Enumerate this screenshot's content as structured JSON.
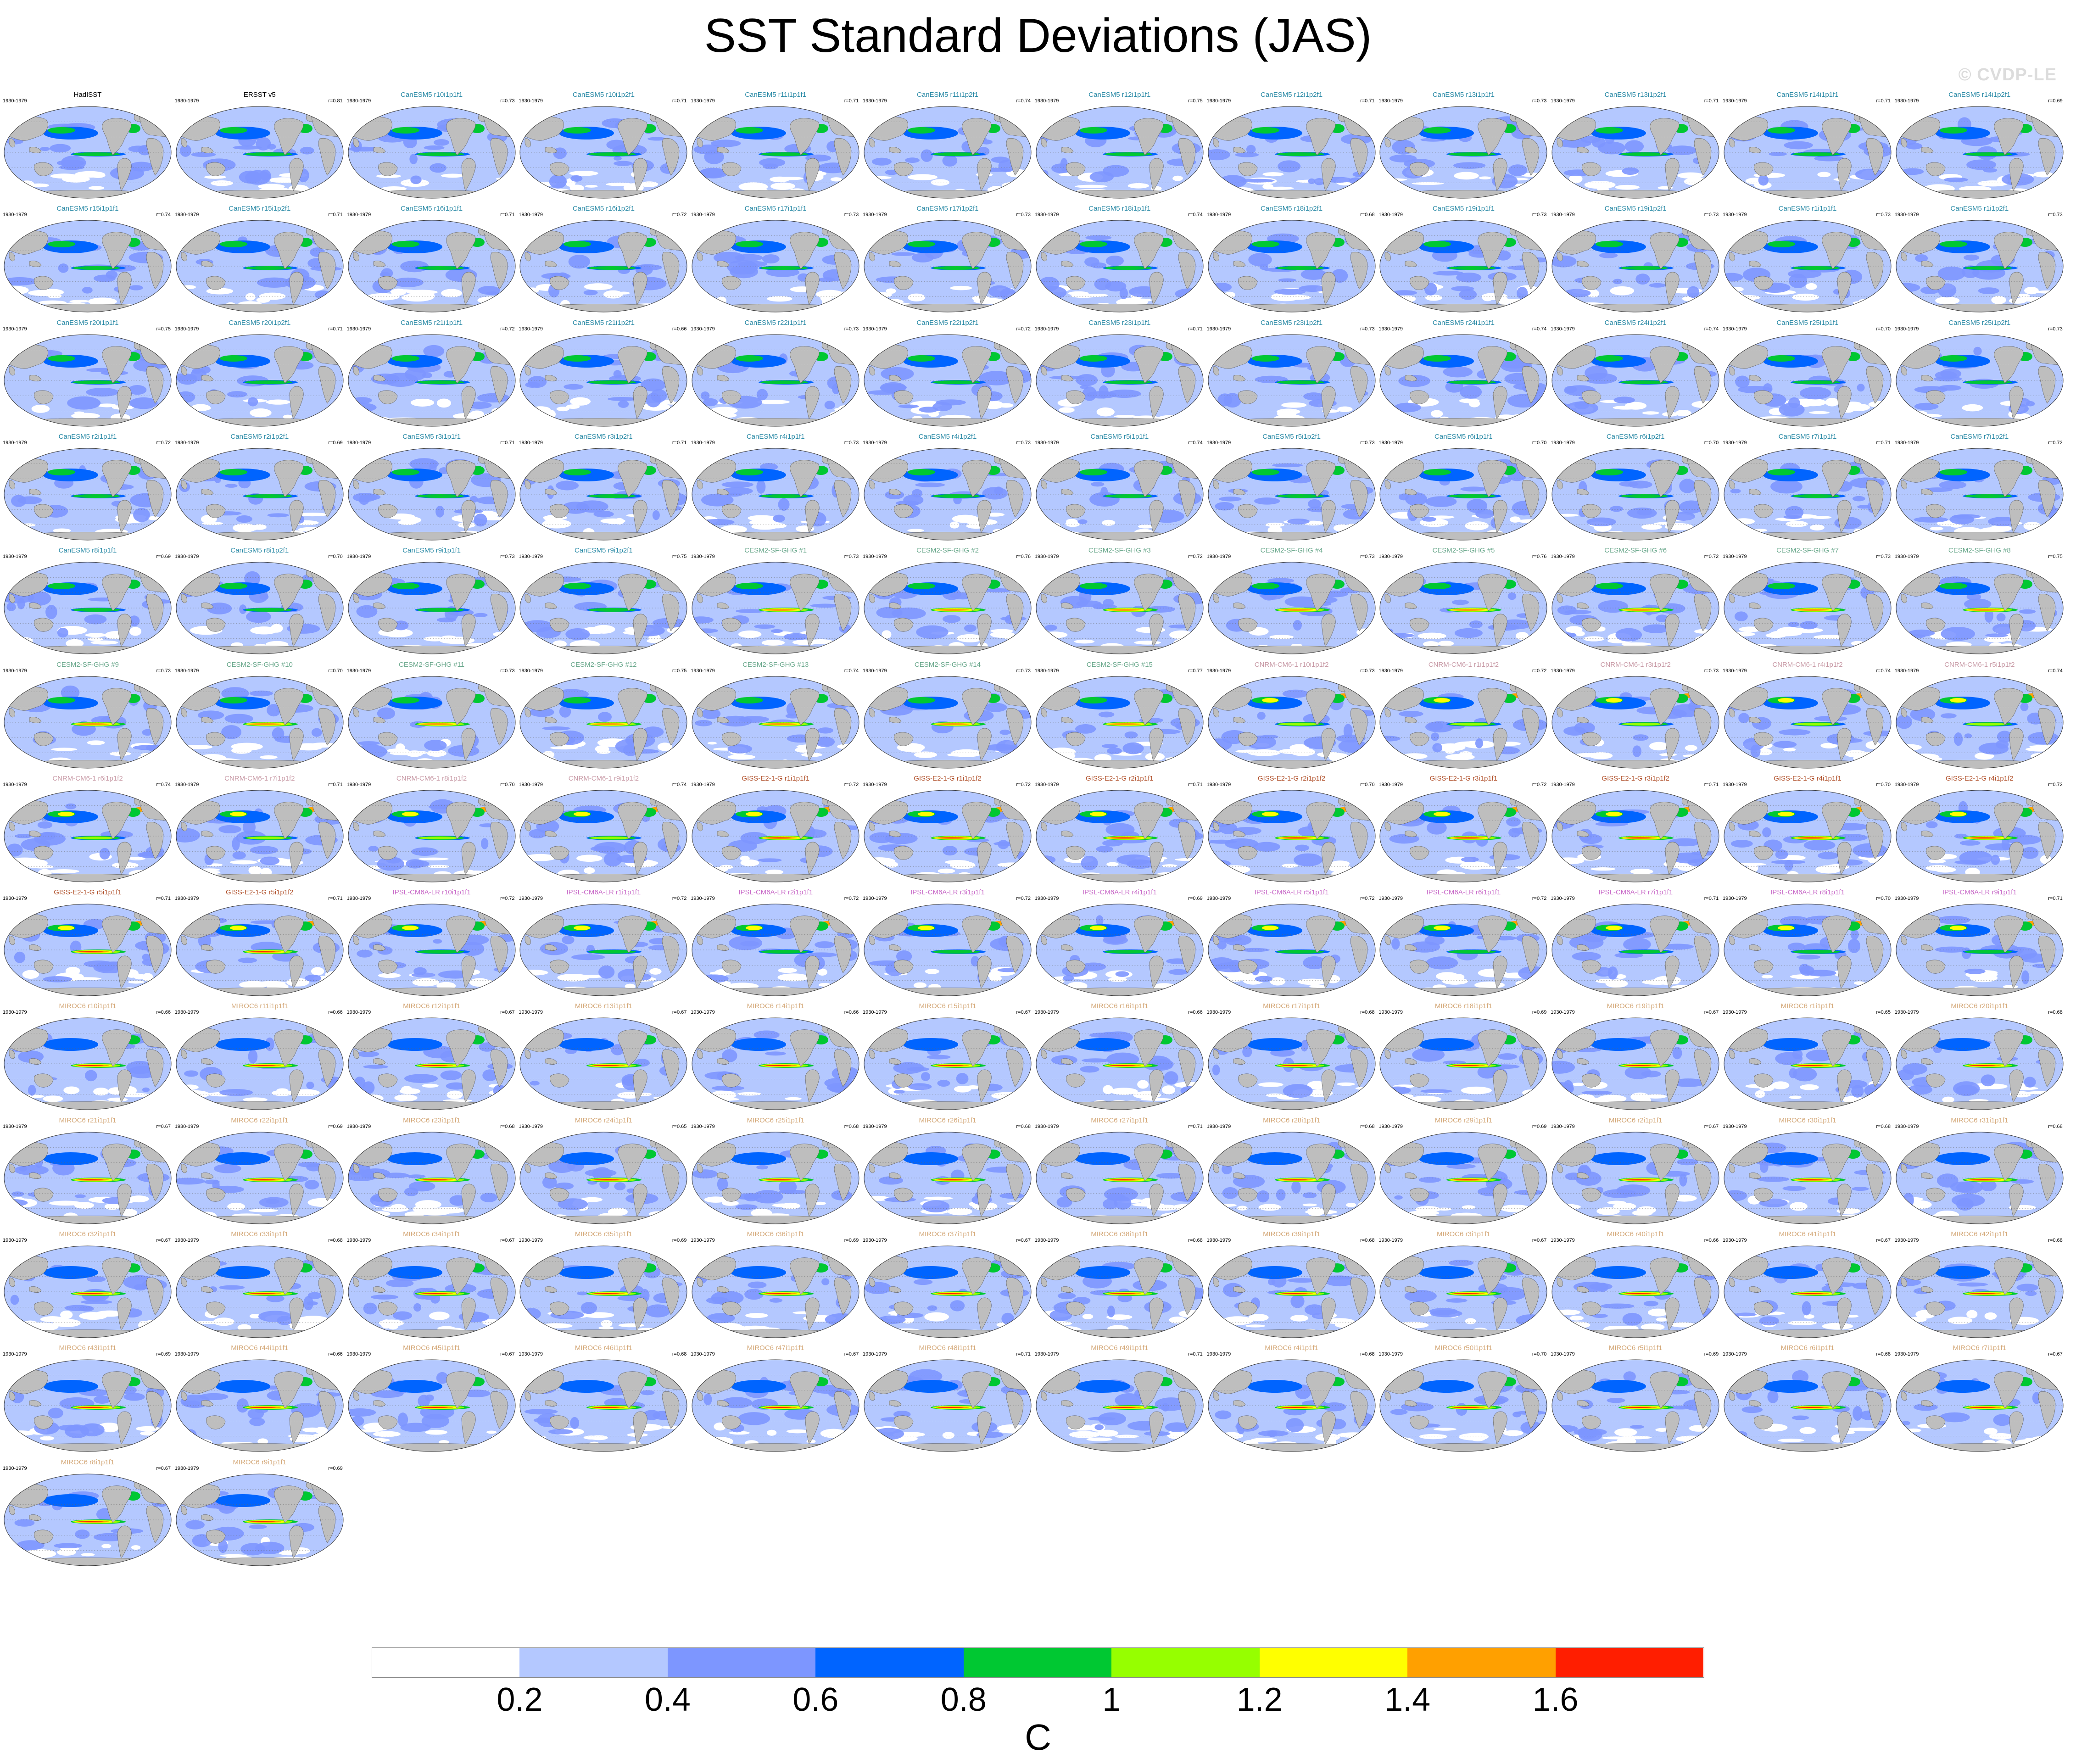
{
  "title": "SST Standard Deviations (JAS)",
  "watermark": "© CVDP-LE",
  "colorbar": {
    "colors": [
      "#ffffff",
      "#b4c8ff",
      "#7d96ff",
      "#0064ff",
      "#00c832",
      "#96ff00",
      "#ffff00",
      "#ffa000",
      "#ff1e00"
    ],
    "ticks": [
      "0.2",
      "0.4",
      "0.6",
      "0.8",
      "1",
      "1.2",
      "1.4",
      "1.6"
    ],
    "units": "C"
  },
  "colors": {
    "land": "#bebebe",
    "ocean_low": "#b4c8ff",
    "obs_label": "#000000",
    "CanESM5": "#2a8aa6",
    "CESM2-SF-GHG": "#6aa88c",
    "CNRM-CM6-1": "#c89aa6",
    "GISS-E2-1-G": "#b0502a",
    "IPSL-CM6A-LR": "#c86ac8",
    "MIROC6": "#d4a878"
  },
  "panels": [
    {
      "label": "HadISST",
      "period": "1930-1979",
      "r": "",
      "group": "obs"
    },
    {
      "label": "ERSST v5",
      "period": "1930-1979",
      "r": "r=0.81",
      "group": "obs"
    },
    {
      "label": "CanESM5 r10i1p1f1",
      "period": "1930-1979",
      "r": "r=0.73",
      "group": "CanESM5"
    },
    {
      "label": "CanESM5 r10i1p2f1",
      "period": "1930-1979",
      "r": "r=0.71",
      "group": "CanESM5"
    },
    {
      "label": "CanESM5 r11i1p1f1",
      "period": "1930-1979",
      "r": "r=0.71",
      "group": "CanESM5"
    },
    {
      "label": "CanESM5 r11i1p2f1",
      "period": "1930-1979",
      "r": "r=0.74",
      "group": "CanESM5"
    },
    {
      "label": "CanESM5 r12i1p1f1",
      "period": "1930-1979",
      "r": "r=0.75",
      "group": "CanESM5"
    },
    {
      "label": "CanESM5 r12i1p2f1",
      "period": "1930-1979",
      "r": "r=0.71",
      "group": "CanESM5"
    },
    {
      "label": "CanESM5 r13i1p1f1",
      "period": "1930-1979",
      "r": "r=0.73",
      "group": "CanESM5"
    },
    {
      "label": "CanESM5 r13i1p2f1",
      "period": "1930-1979",
      "r": "r=0.71",
      "group": "CanESM5"
    },
    {
      "label": "CanESM5 r14i1p1f1",
      "period": "1930-1979",
      "r": "r=0.71",
      "group": "CanESM5"
    },
    {
      "label": "CanESM5 r14i1p2f1",
      "period": "1930-1979",
      "r": "r=0.69",
      "group": "CanESM5"
    },
    {
      "label": "CanESM5 r15i1p1f1",
      "period": "1930-1979",
      "r": "r=0.74",
      "group": "CanESM5"
    },
    {
      "label": "CanESM5 r15i1p2f1",
      "period": "1930-1979",
      "r": "r=0.71",
      "group": "CanESM5"
    },
    {
      "label": "CanESM5 r16i1p1f1",
      "period": "1930-1979",
      "r": "r=0.71",
      "group": "CanESM5"
    },
    {
      "label": "CanESM5 r16i1p2f1",
      "period": "1930-1979",
      "r": "r=0.72",
      "group": "CanESM5"
    },
    {
      "label": "CanESM5 r17i1p1f1",
      "period": "1930-1979",
      "r": "r=0.73",
      "group": "CanESM5"
    },
    {
      "label": "CanESM5 r17i1p2f1",
      "period": "1930-1979",
      "r": "r=0.73",
      "group": "CanESM5"
    },
    {
      "label": "CanESM5 r18i1p1f1",
      "period": "1930-1979",
      "r": "r=0.74",
      "group": "CanESM5"
    },
    {
      "label": "CanESM5 r18i1p2f1",
      "period": "1930-1979",
      "r": "r=0.68",
      "group": "CanESM5"
    },
    {
      "label": "CanESM5 r19i1p1f1",
      "period": "1930-1979",
      "r": "r=0.73",
      "group": "CanESM5"
    },
    {
      "label": "CanESM5 r19i1p2f1",
      "period": "1930-1979",
      "r": "r=0.73",
      "group": "CanESM5"
    },
    {
      "label": "CanESM5 r1i1p1f1",
      "period": "1930-1979",
      "r": "r=0.73",
      "group": "CanESM5"
    },
    {
      "label": "CanESM5 r1i1p2f1",
      "period": "1930-1979",
      "r": "r=0.73",
      "group": "CanESM5"
    },
    {
      "label": "CanESM5 r20i1p1f1",
      "period": "1930-1979",
      "r": "r=0.75",
      "group": "CanESM5"
    },
    {
      "label": "CanESM5 r20i1p2f1",
      "period": "1930-1979",
      "r": "r=0.71",
      "group": "CanESM5"
    },
    {
      "label": "CanESM5 r21i1p1f1",
      "period": "1930-1979",
      "r": "r=0.72",
      "group": "CanESM5"
    },
    {
      "label": "CanESM5 r21i1p2f1",
      "period": "1930-1979",
      "r": "r=0.66",
      "group": "CanESM5"
    },
    {
      "label": "CanESM5 r22i1p1f1",
      "period": "1930-1979",
      "r": "r=0.73",
      "group": "CanESM5"
    },
    {
      "label": "CanESM5 r22i1p2f1",
      "period": "1930-1979",
      "r": "r=0.72",
      "group": "CanESM5"
    },
    {
      "label": "CanESM5 r23i1p1f1",
      "period": "1930-1979",
      "r": "r=0.71",
      "group": "CanESM5"
    },
    {
      "label": "CanESM5 r23i1p2f1",
      "period": "1930-1979",
      "r": "r=0.73",
      "group": "CanESM5"
    },
    {
      "label": "CanESM5 r24i1p1f1",
      "period": "1930-1979",
      "r": "r=0.74",
      "group": "CanESM5"
    },
    {
      "label": "CanESM5 r24i1p2f1",
      "period": "1930-1979",
      "r": "r=0.74",
      "group": "CanESM5"
    },
    {
      "label": "CanESM5 r25i1p1f1",
      "period": "1930-1979",
      "r": "r=0.70",
      "group": "CanESM5"
    },
    {
      "label": "CanESM5 r25i1p2f1",
      "period": "1930-1979",
      "r": "r=0.73",
      "group": "CanESM5"
    },
    {
      "label": "CanESM5 r2i1p1f1",
      "period": "1930-1979",
      "r": "r=0.72",
      "group": "CanESM5"
    },
    {
      "label": "CanESM5 r2i1p2f1",
      "period": "1930-1979",
      "r": "r=0.69",
      "group": "CanESM5"
    },
    {
      "label": "CanESM5 r3i1p1f1",
      "period": "1930-1979",
      "r": "r=0.71",
      "group": "CanESM5"
    },
    {
      "label": "CanESM5 r3i1p2f1",
      "period": "1930-1979",
      "r": "r=0.71",
      "group": "CanESM5"
    },
    {
      "label": "CanESM5 r4i1p1f1",
      "period": "1930-1979",
      "r": "r=0.73",
      "group": "CanESM5"
    },
    {
      "label": "CanESM5 r4i1p2f1",
      "period": "1930-1979",
      "r": "r=0.73",
      "group": "CanESM5"
    },
    {
      "label": "CanESM5 r5i1p1f1",
      "period": "1930-1979",
      "r": "r=0.74",
      "group": "CanESM5"
    },
    {
      "label": "CanESM5 r5i1p2f1",
      "period": "1930-1979",
      "r": "r=0.73",
      "group": "CanESM5"
    },
    {
      "label": "CanESM5 r6i1p1f1",
      "period": "1930-1979",
      "r": "r=0.70",
      "group": "CanESM5"
    },
    {
      "label": "CanESM5 r6i1p2f1",
      "period": "1930-1979",
      "r": "r=0.70",
      "group": "CanESM5"
    },
    {
      "label": "CanESM5 r7i1p1f1",
      "period": "1930-1979",
      "r": "r=0.71",
      "group": "CanESM5"
    },
    {
      "label": "CanESM5 r7i1p2f1",
      "period": "1930-1979",
      "r": "r=0.72",
      "group": "CanESM5"
    },
    {
      "label": "CanESM5 r8i1p1f1",
      "period": "1930-1979",
      "r": "r=0.69",
      "group": "CanESM5"
    },
    {
      "label": "CanESM5 r8i1p2f1",
      "period": "1930-1979",
      "r": "r=0.70",
      "group": "CanESM5"
    },
    {
      "label": "CanESM5 r9i1p1f1",
      "period": "1930-1979",
      "r": "r=0.73",
      "group": "CanESM5"
    },
    {
      "label": "CanESM5 r9i1p2f1",
      "period": "1930-1979",
      "r": "r=0.75",
      "group": "CanESM5"
    },
    {
      "label": "CESM2-SF-GHG #1",
      "period": "1930-1979",
      "r": "r=0.73",
      "group": "CESM2-SF-GHG"
    },
    {
      "label": "CESM2-SF-GHG #2",
      "period": "1930-1979",
      "r": "r=0.76",
      "group": "CESM2-SF-GHG"
    },
    {
      "label": "CESM2-SF-GHG #3",
      "period": "1930-1979",
      "r": "r=0.72",
      "group": "CESM2-SF-GHG"
    },
    {
      "label": "CESM2-SF-GHG #4",
      "period": "1930-1979",
      "r": "r=0.73",
      "group": "CESM2-SF-GHG"
    },
    {
      "label": "CESM2-SF-GHG #5",
      "period": "1930-1979",
      "r": "r=0.76",
      "group": "CESM2-SF-GHG"
    },
    {
      "label": "CESM2-SF-GHG #6",
      "period": "1930-1979",
      "r": "r=0.72",
      "group": "CESM2-SF-GHG"
    },
    {
      "label": "CESM2-SF-GHG #7",
      "period": "1930-1979",
      "r": "r=0.73",
      "group": "CESM2-SF-GHG"
    },
    {
      "label": "CESM2-SF-GHG #8",
      "period": "1930-1979",
      "r": "r=0.75",
      "group": "CESM2-SF-GHG"
    },
    {
      "label": "CESM2-SF-GHG #9",
      "period": "1930-1979",
      "r": "r=0.73",
      "group": "CESM2-SF-GHG"
    },
    {
      "label": "CESM2-SF-GHG #10",
      "period": "1930-1979",
      "r": "r=0.70",
      "group": "CESM2-SF-GHG"
    },
    {
      "label": "CESM2-SF-GHG #11",
      "period": "1930-1979",
      "r": "r=0.73",
      "group": "CESM2-SF-GHG"
    },
    {
      "label": "CESM2-SF-GHG #12",
      "period": "1930-1979",
      "r": "r=0.75",
      "group": "CESM2-SF-GHG"
    },
    {
      "label": "CESM2-SF-GHG #13",
      "period": "1930-1979",
      "r": "r=0.74",
      "group": "CESM2-SF-GHG"
    },
    {
      "label": "CESM2-SF-GHG #14",
      "period": "1930-1979",
      "r": "r=0.73",
      "group": "CESM2-SF-GHG"
    },
    {
      "label": "CESM2-SF-GHG #15",
      "period": "1930-1979",
      "r": "r=0.77",
      "group": "CESM2-SF-GHG"
    },
    {
      "label": "CNRM-CM6-1 r10i1p1f2",
      "period": "1930-1979",
      "r": "r=0.73",
      "group": "CNRM-CM6-1"
    },
    {
      "label": "CNRM-CM6-1 r1i1p1f2",
      "period": "1930-1979",
      "r": "r=0.72",
      "group": "CNRM-CM6-1"
    },
    {
      "label": "CNRM-CM6-1 r3i1p1f2",
      "period": "1930-1979",
      "r": "r=0.73",
      "group": "CNRM-CM6-1"
    },
    {
      "label": "CNRM-CM6-1 r4i1p1f2",
      "period": "1930-1979",
      "r": "r=0.74",
      "group": "CNRM-CM6-1"
    },
    {
      "label": "CNRM-CM6-1 r5i1p1f2",
      "period": "1930-1979",
      "r": "r=0.74",
      "group": "CNRM-CM6-1"
    },
    {
      "label": "CNRM-CM6-1 r6i1p1f2",
      "period": "1930-1979",
      "r": "r=0.74",
      "group": "CNRM-CM6-1"
    },
    {
      "label": "CNRM-CM6-1 r7i1p1f2",
      "period": "1930-1979",
      "r": "r=0.71",
      "group": "CNRM-CM6-1"
    },
    {
      "label": "CNRM-CM6-1 r8i1p1f2",
      "period": "1930-1979",
      "r": "r=0.70",
      "group": "CNRM-CM6-1"
    },
    {
      "label": "CNRM-CM6-1 r9i1p1f2",
      "period": "1930-1979",
      "r": "r=0.74",
      "group": "CNRM-CM6-1"
    },
    {
      "label": "GISS-E2-1-G r1i1p1f1",
      "period": "1930-1979",
      "r": "r=0.72",
      "group": "GISS-E2-1-G"
    },
    {
      "label": "GISS-E2-1-G r1i1p1f2",
      "period": "1930-1979",
      "r": "r=0.72",
      "group": "GISS-E2-1-G"
    },
    {
      "label": "GISS-E2-1-G r2i1p1f1",
      "period": "1930-1979",
      "r": "r=0.71",
      "group": "GISS-E2-1-G"
    },
    {
      "label": "GISS-E2-1-G r2i1p1f2",
      "period": "1930-1979",
      "r": "r=0.70",
      "group": "GISS-E2-1-G"
    },
    {
      "label": "GISS-E2-1-G r3i1p1f1",
      "period": "1930-1979",
      "r": "r=0.72",
      "group": "GISS-E2-1-G"
    },
    {
      "label": "GISS-E2-1-G r3i1p1f2",
      "period": "1930-1979",
      "r": "r=0.71",
      "group": "GISS-E2-1-G"
    },
    {
      "label": "GISS-E2-1-G r4i1p1f1",
      "period": "1930-1979",
      "r": "r=0.70",
      "group": "GISS-E2-1-G"
    },
    {
      "label": "GISS-E2-1-G r4i1p1f2",
      "period": "1930-1979",
      "r": "r=0.72",
      "group": "GISS-E2-1-G"
    },
    {
      "label": "GISS-E2-1-G r5i1p1f1",
      "period": "1930-1979",
      "r": "r=0.71",
      "group": "GISS-E2-1-G"
    },
    {
      "label": "GISS-E2-1-G r5i1p1f2",
      "period": "1930-1979",
      "r": "r=0.71",
      "group": "GISS-E2-1-G"
    },
    {
      "label": "IPSL-CM6A-LR r10i1p1f1",
      "period": "1930-1979",
      "r": "r=0.72",
      "group": "IPSL-CM6A-LR"
    },
    {
      "label": "IPSL-CM6A-LR r1i1p1f1",
      "period": "1930-1979",
      "r": "r=0.72",
      "group": "IPSL-CM6A-LR"
    },
    {
      "label": "IPSL-CM6A-LR r2i1p1f1",
      "period": "1930-1979",
      "r": "r=0.72",
      "group": "IPSL-CM6A-LR"
    },
    {
      "label": "IPSL-CM6A-LR r3i1p1f1",
      "period": "1930-1979",
      "r": "r=0.72",
      "group": "IPSL-CM6A-LR"
    },
    {
      "label": "IPSL-CM6A-LR r4i1p1f1",
      "period": "1930-1979",
      "r": "r=0.69",
      "group": "IPSL-CM6A-LR"
    },
    {
      "label": "IPSL-CM6A-LR r5i1p1f1",
      "period": "1930-1979",
      "r": "r=0.72",
      "group": "IPSL-CM6A-LR"
    },
    {
      "label": "IPSL-CM6A-LR r6i1p1f1",
      "period": "1930-1979",
      "r": "r=0.72",
      "group": "IPSL-CM6A-LR"
    },
    {
      "label": "IPSL-CM6A-LR r7i1p1f1",
      "period": "1930-1979",
      "r": "r=0.71",
      "group": "IPSL-CM6A-LR"
    },
    {
      "label": "IPSL-CM6A-LR r8i1p1f1",
      "period": "1930-1979",
      "r": "r=0.70",
      "group": "IPSL-CM6A-LR"
    },
    {
      "label": "IPSL-CM6A-LR r9i1p1f1",
      "period": "1930-1979",
      "r": "r=0.71",
      "group": "IPSL-CM6A-LR"
    },
    {
      "label": "MIROC6 r10i1p1f1",
      "period": "1930-1979",
      "r": "r=0.66",
      "group": "MIROC6"
    },
    {
      "label": "MIROC6 r11i1p1f1",
      "period": "1930-1979",
      "r": "r=0.66",
      "group": "MIROC6"
    },
    {
      "label": "MIROC6 r12i1p1f1",
      "period": "1930-1979",
      "r": "r=0.67",
      "group": "MIROC6"
    },
    {
      "label": "MIROC6 r13i1p1f1",
      "period": "1930-1979",
      "r": "r=0.67",
      "group": "MIROC6"
    },
    {
      "label": "MIROC6 r14i1p1f1",
      "period": "1930-1979",
      "r": "r=0.66",
      "group": "MIROC6"
    },
    {
      "label": "MIROC6 r15i1p1f1",
      "period": "1930-1979",
      "r": "r=0.67",
      "group": "MIROC6"
    },
    {
      "label": "MIROC6 r16i1p1f1",
      "period": "1930-1979",
      "r": "r=0.66",
      "group": "MIROC6"
    },
    {
      "label": "MIROC6 r17i1p1f1",
      "period": "1930-1979",
      "r": "r=0.68",
      "group": "MIROC6"
    },
    {
      "label": "MIROC6 r18i1p1f1",
      "period": "1930-1979",
      "r": "r=0.69",
      "group": "MIROC6"
    },
    {
      "label": "MIROC6 r19i1p1f1",
      "period": "1930-1979",
      "r": "r=0.67",
      "group": "MIROC6"
    },
    {
      "label": "MIROC6 r1i1p1f1",
      "period": "1930-1979",
      "r": "r=0.65",
      "group": "MIROC6"
    },
    {
      "label": "MIROC6 r20i1p1f1",
      "period": "1930-1979",
      "r": "r=0.68",
      "group": "MIROC6"
    },
    {
      "label": "MIROC6 r21i1p1f1",
      "period": "1930-1979",
      "r": "r=0.67",
      "group": "MIROC6"
    },
    {
      "label": "MIROC6 r22i1p1f1",
      "period": "1930-1979",
      "r": "r=0.69",
      "group": "MIROC6"
    },
    {
      "label": "MIROC6 r23i1p1f1",
      "period": "1930-1979",
      "r": "r=0.68",
      "group": "MIROC6"
    },
    {
      "label": "MIROC6 r24i1p1f1",
      "period": "1930-1979",
      "r": "r=0.65",
      "group": "MIROC6"
    },
    {
      "label": "MIROC6 r25i1p1f1",
      "period": "1930-1979",
      "r": "r=0.68",
      "group": "MIROC6"
    },
    {
      "label": "MIROC6 r26i1p1f1",
      "period": "1930-1979",
      "r": "r=0.68",
      "group": "MIROC6"
    },
    {
      "label": "MIROC6 r27i1p1f1",
      "period": "1930-1979",
      "r": "r=0.71",
      "group": "MIROC6"
    },
    {
      "label": "MIROC6 r28i1p1f1",
      "period": "1930-1979",
      "r": "r=0.68",
      "group": "MIROC6"
    },
    {
      "label": "MIROC6 r29i1p1f1",
      "period": "1930-1979",
      "r": "r=0.69",
      "group": "MIROC6"
    },
    {
      "label": "MIROC6 r2i1p1f1",
      "period": "1930-1979",
      "r": "r=0.67",
      "group": "MIROC6"
    },
    {
      "label": "MIROC6 r30i1p1f1",
      "period": "1930-1979",
      "r": "r=0.68",
      "group": "MIROC6"
    },
    {
      "label": "MIROC6 r31i1p1f1",
      "period": "1930-1979",
      "r": "r=0.68",
      "group": "MIROC6"
    },
    {
      "label": "MIROC6 r32i1p1f1",
      "period": "1930-1979",
      "r": "r=0.67",
      "group": "MIROC6"
    },
    {
      "label": "MIROC6 r33i1p1f1",
      "period": "1930-1979",
      "r": "r=0.68",
      "group": "MIROC6"
    },
    {
      "label": "MIROC6 r34i1p1f1",
      "period": "1930-1979",
      "r": "r=0.67",
      "group": "MIROC6"
    },
    {
      "label": "MIROC6 r35i1p1f1",
      "period": "1930-1979",
      "r": "r=0.69",
      "group": "MIROC6"
    },
    {
      "label": "MIROC6 r36i1p1f1",
      "period": "1930-1979",
      "r": "r=0.69",
      "group": "MIROC6"
    },
    {
      "label": "MIROC6 r37i1p1f1",
      "period": "1930-1979",
      "r": "r=0.67",
      "group": "MIROC6"
    },
    {
      "label": "MIROC6 r38i1p1f1",
      "period": "1930-1979",
      "r": "r=0.68",
      "group": "MIROC6"
    },
    {
      "label": "MIROC6 r39i1p1f1",
      "period": "1930-1979",
      "r": "r=0.68",
      "group": "MIROC6"
    },
    {
      "label": "MIROC6 r3i1p1f1",
      "period": "1930-1979",
      "r": "r=0.67",
      "group": "MIROC6"
    },
    {
      "label": "MIROC6 r40i1p1f1",
      "period": "1930-1979",
      "r": "r=0.66",
      "group": "MIROC6"
    },
    {
      "label": "MIROC6 r41i1p1f1",
      "period": "1930-1979",
      "r": "r=0.67",
      "group": "MIROC6"
    },
    {
      "label": "MIROC6 r42i1p1f1",
      "period": "1930-1979",
      "r": "r=0.68",
      "group": "MIROC6"
    },
    {
      "label": "MIROC6 r43i1p1f1",
      "period": "1930-1979",
      "r": "r=0.69",
      "group": "MIROC6"
    },
    {
      "label": "MIROC6 r44i1p1f1",
      "period": "1930-1979",
      "r": "r=0.66",
      "group": "MIROC6"
    },
    {
      "label": "MIROC6 r45i1p1f1",
      "period": "1930-1979",
      "r": "r=0.67",
      "group": "MIROC6"
    },
    {
      "label": "MIROC6 r46i1p1f1",
      "period": "1930-1979",
      "r": "r=0.68",
      "group": "MIROC6"
    },
    {
      "label": "MIROC6 r47i1p1f1",
      "period": "1930-1979",
      "r": "r=0.67",
      "group": "MIROC6"
    },
    {
      "label": "MIROC6 r48i1p1f1",
      "period": "1930-1979",
      "r": "r=0.71",
      "group": "MIROC6"
    },
    {
      "label": "MIROC6 r49i1p1f1",
      "period": "1930-1979",
      "r": "r=0.71",
      "group": "MIROC6"
    },
    {
      "label": "MIROC6 r4i1p1f1",
      "period": "1930-1979",
      "r": "r=0.68",
      "group": "MIROC6"
    },
    {
      "label": "MIROC6 r50i1p1f1",
      "period": "1930-1979",
      "r": "r=0.70",
      "group": "MIROC6"
    },
    {
      "label": "MIROC6 r5i1p1f1",
      "period": "1930-1979",
      "r": "r=0.69",
      "group": "MIROC6"
    },
    {
      "label": "MIROC6 r6i1p1f1",
      "period": "1930-1979",
      "r": "r=0.68",
      "group": "MIROC6"
    },
    {
      "label": "MIROC6 r7i1p1f1",
      "period": "1930-1979",
      "r": "r=0.67",
      "group": "MIROC6"
    },
    {
      "label": "MIROC6 r8i1p1f1",
      "period": "1930-1979",
      "r": "r=0.67",
      "group": "MIROC6"
    },
    {
      "label": "MIROC6 r9i1p1f1",
      "period": "1930-1979",
      "r": "r=0.69",
      "group": "MIROC6"
    }
  ]
}
